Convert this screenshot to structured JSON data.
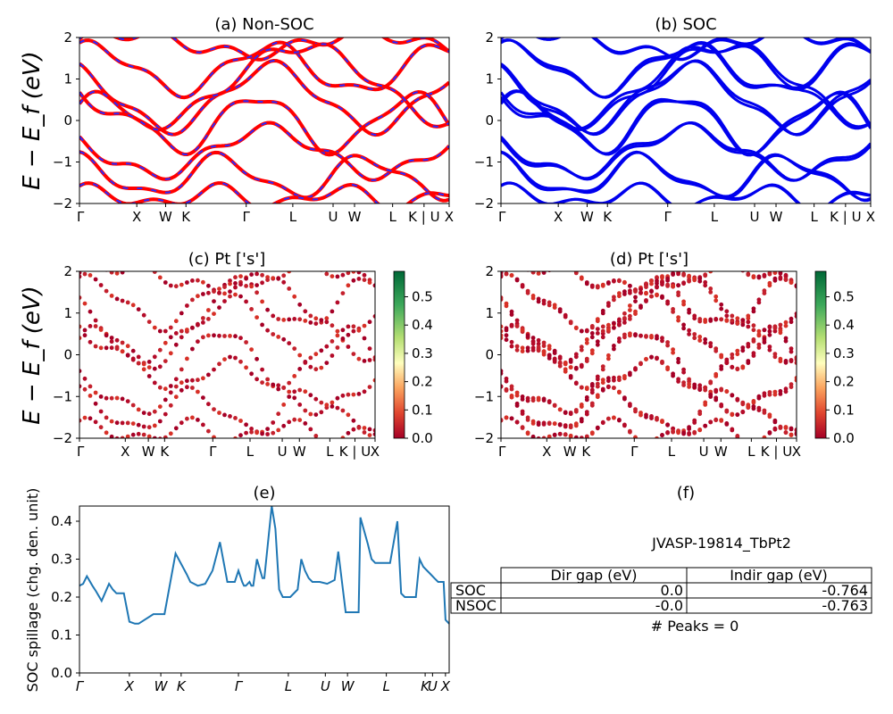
{
  "chart_data": [
    {
      "id": "a",
      "type": "line",
      "title": "(a) Non-SOC",
      "ylabel": "E − E_f (eV)",
      "ylim": [
        -2,
        2
      ],
      "yticks": [
        "2",
        "1",
        "0",
        "−1",
        "−2"
      ],
      "xticks": [
        "Γ",
        "X",
        "W",
        "K",
        "Γ",
        "L",
        "U",
        "W",
        "L",
        "K | U",
        "X"
      ],
      "series_colors": [
        "#ff0000",
        "#2a2aff"
      ]
    },
    {
      "id": "b",
      "type": "line",
      "title": "(b) SOC",
      "ylim": [
        -2,
        2
      ],
      "yticks": [
        "2",
        "1",
        "0",
        "−1",
        "−2"
      ],
      "xticks": [
        "Γ",
        "X",
        "W",
        "K",
        "Γ",
        "L",
        "U",
        "W",
        "L",
        "K | U",
        "X"
      ],
      "series_colors": [
        "#0000ee"
      ]
    },
    {
      "id": "c",
      "type": "scatter",
      "title": "(c)  Pt ['s']",
      "ylabel": "E − E_f (eV)",
      "ylim": [
        -2,
        2
      ],
      "yticks": [
        "2",
        "1",
        "0",
        "−1",
        "−2"
      ],
      "xticks": [
        "Γ",
        "X",
        "W",
        "K",
        "Γ",
        "L",
        "U",
        "W",
        "L",
        "K | U",
        "X"
      ],
      "colorbar": [
        "0.5",
        "0.4",
        "0.3",
        "0.2",
        "0.1",
        "0.0"
      ],
      "colormap": "RdYlGn"
    },
    {
      "id": "d",
      "type": "scatter",
      "title": "(d) Pt ['s']",
      "ylim": [
        -2,
        2
      ],
      "yticks": [
        "2",
        "1",
        "0",
        "−1",
        "−2"
      ],
      "xticks": [
        "Γ",
        "X",
        "W",
        "K",
        "Γ",
        "L",
        "U",
        "W",
        "L",
        "K | U",
        "X"
      ],
      "colorbar": [
        "0.5",
        "0.4",
        "0.3",
        "0.2",
        "0.1",
        "0.0"
      ],
      "colormap": "RdYlGn"
    },
    {
      "id": "e",
      "type": "line",
      "title": "(e)",
      "ylabel": "SOC spillage (chg. den. unit)",
      "ylim": [
        0,
        0.44
      ],
      "yticks": [
        "0.4",
        "0.3",
        "0.2",
        "0.1",
        "0.0"
      ],
      "xticks": [
        "Γ",
        "X",
        "W",
        "K",
        "Γ",
        "L",
        "U",
        "W",
        "L",
        "K",
        "U",
        "X"
      ],
      "color": "#1f77b4",
      "x": [
        0.0,
        0.01,
        0.02,
        0.035,
        0.045,
        0.06,
        0.08,
        0.09,
        0.1,
        0.12,
        0.135,
        0.15,
        0.16,
        0.2,
        0.23,
        0.26,
        0.29,
        0.3,
        0.31,
        0.32,
        0.34,
        0.36,
        0.38,
        0.4,
        0.42,
        0.43,
        0.44,
        0.445,
        0.45,
        0.46,
        0.465,
        0.47,
        0.48,
        0.495,
        0.5,
        0.52,
        0.53,
        0.54,
        0.545,
        0.55,
        0.56,
        0.57,
        0.59,
        0.6,
        0.61,
        0.62,
        0.63,
        0.65,
        0.67,
        0.69,
        0.7,
        0.72,
        0.74,
        0.755,
        0.76,
        0.78,
        0.79,
        0.8,
        0.84,
        0.86,
        0.87,
        0.88,
        0.9,
        0.91,
        0.92,
        0.93,
        0.95,
        0.96,
        0.97,
        0.98,
        0.985,
        0.99,
        1.0
      ],
      "y": [
        0.23,
        0.235,
        0.255,
        0.23,
        0.215,
        0.19,
        0.235,
        0.22,
        0.21,
        0.21,
        0.135,
        0.13,
        0.13,
        0.155,
        0.155,
        0.315,
        0.26,
        0.24,
        0.235,
        0.23,
        0.235,
        0.27,
        0.345,
        0.24,
        0.24,
        0.27,
        0.24,
        0.23,
        0.23,
        0.24,
        0.23,
        0.23,
        0.3,
        0.25,
        0.25,
        0.44,
        0.38,
        0.22,
        0.21,
        0.2,
        0.2,
        0.2,
        0.22,
        0.3,
        0.27,
        0.25,
        0.24,
        0.24,
        0.235,
        0.245,
        0.32,
        0.16,
        0.16,
        0.16,
        0.41,
        0.34,
        0.3,
        0.29,
        0.29,
        0.4,
        0.21,
        0.2,
        0.2,
        0.2,
        0.3,
        0.28,
        0.26,
        0.25,
        0.24,
        0.24,
        0.24,
        0.14,
        0.13
      ]
    },
    {
      "id": "f",
      "type": "table",
      "title": "(f)",
      "subtitle": "JVASP-19814_TbPt2",
      "columns": [
        "Dir gap (eV)",
        "Indir gap (eV)"
      ],
      "rows": [
        {
          "label": "SOC",
          "values": [
            "0.0",
            "-0.764"
          ]
        },
        {
          "label": "NSOC",
          "values": [
            "-0.0",
            "-0.763"
          ]
        }
      ],
      "footer": "# Peaks = 0"
    }
  ]
}
